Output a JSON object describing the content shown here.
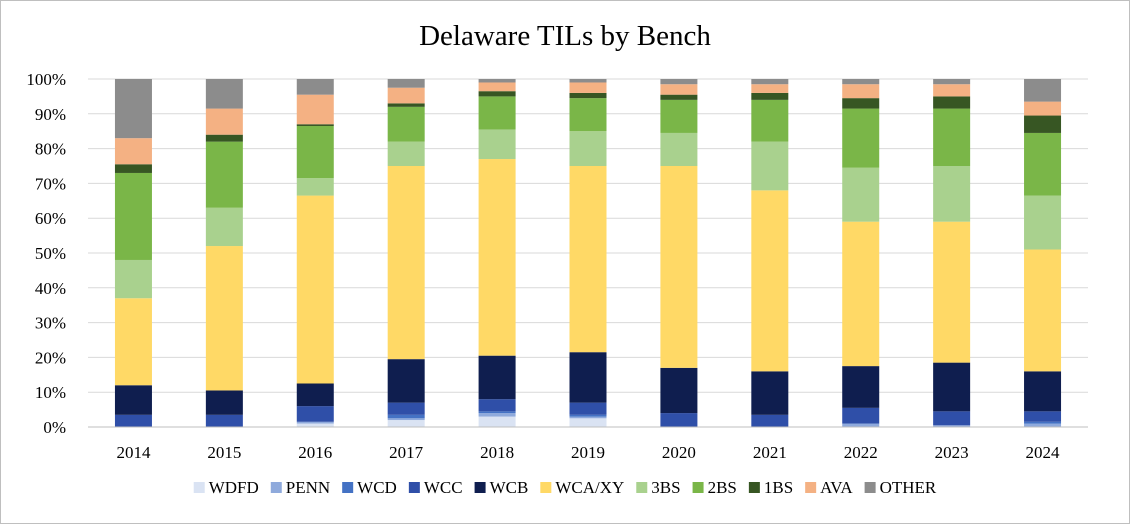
{
  "chart_data": {
    "type": "bar",
    "stacked": true,
    "title": "Delaware TILs by Bench",
    "xlabel": "",
    "ylabel": "",
    "ylim": [
      0,
      100
    ],
    "yticks": [
      "0%",
      "10%",
      "20%",
      "30%",
      "40%",
      "50%",
      "60%",
      "70%",
      "80%",
      "90%",
      "100%"
    ],
    "grid": true,
    "legend_position": "bottom",
    "categories": [
      "2014",
      "2015",
      "2016",
      "2017",
      "2018",
      "2019",
      "2020",
      "2021",
      "2022",
      "2023",
      "2024"
    ],
    "series": [
      {
        "name": "WDFD",
        "color": "#dae3f3",
        "values": [
          0,
          0,
          1,
          2,
          3,
          2.5,
          0,
          0,
          0,
          0,
          0
        ]
      },
      {
        "name": "PENN",
        "color": "#8faadc",
        "values": [
          0,
          0,
          0.5,
          0.5,
          1,
          0.5,
          0,
          0,
          1,
          0.5,
          1
        ]
      },
      {
        "name": "WCD",
        "color": "#4472c4",
        "values": [
          0,
          0,
          0,
          1,
          0.5,
          0.5,
          0,
          0,
          0,
          0,
          0.5
        ]
      },
      {
        "name": "WCC",
        "color": "#2f4fa8",
        "values": [
          3.5,
          3.5,
          4.5,
          3.5,
          3.5,
          3.5,
          4,
          3.5,
          4.5,
          4,
          3
        ]
      },
      {
        "name": "WCB",
        "color": "#0f1e4f",
        "values": [
          8.5,
          7,
          6.5,
          12.5,
          12.5,
          14.5,
          13,
          12.5,
          12,
          14,
          11.5
        ]
      },
      {
        "name": "WCA/XY",
        "color": "#ffd966",
        "values": [
          25,
          41.5,
          54,
          55.5,
          56.5,
          53.5,
          58,
          52,
          41.5,
          40.5,
          35
        ]
      },
      {
        "name": "3BS",
        "color": "#a9d18e",
        "values": [
          11,
          11,
          5,
          7,
          8.5,
          10,
          9.5,
          14,
          15.5,
          16,
          15.5
        ]
      },
      {
        "name": "2BS",
        "color": "#7ab648",
        "values": [
          25,
          19,
          15,
          10,
          9.5,
          9.5,
          9.5,
          12,
          17,
          16.5,
          18
        ]
      },
      {
        "name": "1BS",
        "color": "#375623",
        "values": [
          2.5,
          2,
          0.5,
          1,
          1.5,
          1.5,
          1.5,
          2,
          3,
          3.5,
          5
        ]
      },
      {
        "name": "AVA",
        "color": "#f4b183",
        "values": [
          7.5,
          7.5,
          8.5,
          4.5,
          2.5,
          3,
          3,
          2.5,
          4,
          3.5,
          4
        ]
      },
      {
        "name": "OTHER",
        "color": "#8c8c8c",
        "values": [
          17,
          8.5,
          4.5,
          2.5,
          1,
          1,
          1.5,
          1.5,
          1.5,
          1.5,
          6.5
        ]
      }
    ]
  }
}
